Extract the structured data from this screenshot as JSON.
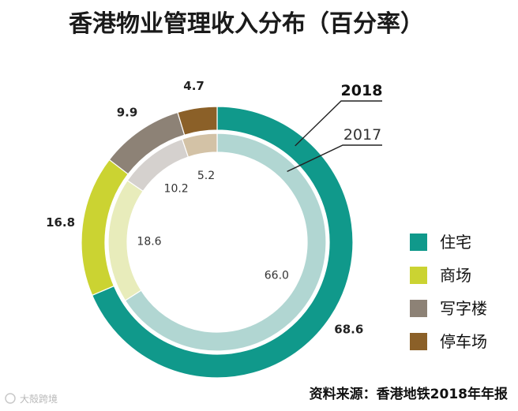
{
  "chart_data": {
    "type": "donut",
    "title": "香港物业管理收入分布（百分率）",
    "categories": [
      "住宅",
      "商场",
      "写字楼",
      "停车场"
    ],
    "series": [
      {
        "name": "2018",
        "values": [
          68.6,
          16.8,
          9.9,
          4.7
        ],
        "value_labels": [
          "68.6",
          "16.8",
          "9.9",
          "4.7"
        ],
        "ring": "outer"
      },
      {
        "name": "2017",
        "values": [
          66.0,
          18.6,
          10.2,
          5.2
        ],
        "value_labels": [
          "66.0",
          "18.6",
          "10.2",
          "5.2"
        ],
        "ring": "inner"
      }
    ],
    "colors": {
      "outer": [
        "#10998b",
        "#cbd332",
        "#8d8276",
        "#8b6028"
      ],
      "inner": [
        "#b1d6d2",
        "#e8ecbb",
        "#d5d1ce",
        "#d3c2a6"
      ]
    },
    "legend": {
      "position": "right"
    },
    "source": "资料来源：香港地铁2018年年报"
  },
  "watermark": "大殻跨境"
}
